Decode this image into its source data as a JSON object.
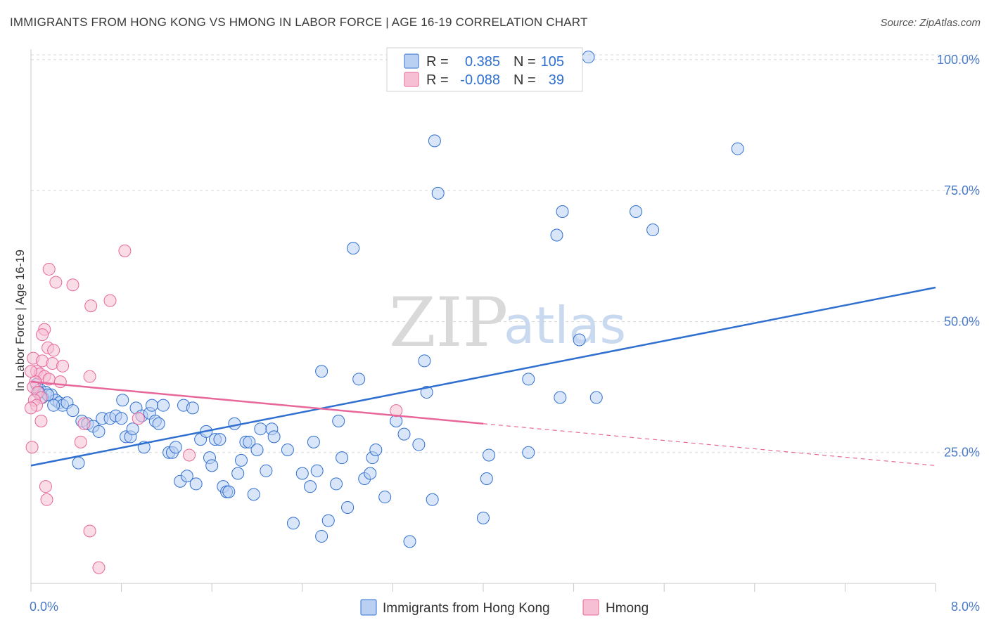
{
  "title": "IMMIGRANTS FROM HONG KONG VS HMONG IN LABOR FORCE | AGE 16-19 CORRELATION CHART",
  "source": "Source: ZipAtlas.com",
  "watermark": {
    "zip": "ZIP",
    "atlas": "atlas"
  },
  "colors": {
    "blue": "#2f6fd0",
    "blue_fill": "#b9d0f3",
    "pink": "#e8679a",
    "pink_fill": "#f6bfd3",
    "grid": "#d8d8d8",
    "tick_text": "#4a7bc8"
  },
  "legend": {
    "rows": [
      {
        "r_label": "R =",
        "r_value": "0.385",
        "n_label": "N =",
        "n_value": "105"
      },
      {
        "r_label": "R =",
        "r_value": "-0.088",
        "n_label": "N =",
        "n_value": "39"
      }
    ]
  },
  "chart_data": {
    "type": "scatter",
    "title": "IMMIGRANTS FROM HONG KONG VS HMONG IN LABOR FORCE | AGE 16-19 CORRELATION CHART",
    "xlabel": "",
    "ylabel": "In Labor Force | Age 16-19",
    "xlim": [
      0,
      8
    ],
    "ylim": [
      0,
      102
    ],
    "x_tick_labels": [
      "0.0%",
      "8.0%"
    ],
    "y_ticks": [
      25,
      50,
      75,
      100
    ],
    "y_tick_labels": [
      "25.0%",
      "50.0%",
      "75.0%",
      "100.0%"
    ],
    "grid": true,
    "legend_position": "top-center and bottom",
    "series": [
      {
        "name": "Immigrants from Hong Kong",
        "color": "#2f6fd0",
        "trend": {
          "x": [
            0,
            8
          ],
          "y": [
            22.5,
            56.5
          ]
        },
        "points": [
          [
            4.93,
            100.5
          ],
          [
            3.57,
            84.5
          ],
          [
            6.25,
            83.0
          ],
          [
            3.6,
            74.5
          ],
          [
            4.7,
            71.0
          ],
          [
            5.35,
            71.0
          ],
          [
            4.65,
            66.5
          ],
          [
            5.5,
            67.5
          ],
          [
            2.85,
            64.0
          ],
          [
            4.85,
            46.5
          ],
          [
            3.48,
            42.5
          ],
          [
            2.57,
            40.5
          ],
          [
            2.9,
            39.0
          ],
          [
            4.4,
            39.0
          ],
          [
            3.5,
            36.5
          ],
          [
            4.68,
            35.5
          ],
          [
            5.0,
            35.5
          ],
          [
            0.05,
            38.0
          ],
          [
            0.08,
            37.0
          ],
          [
            0.13,
            36.5
          ],
          [
            0.18,
            36.0
          ],
          [
            0.22,
            35.0
          ],
          [
            0.25,
            34.5
          ],
          [
            0.28,
            34.0
          ],
          [
            0.1,
            35.5
          ],
          [
            0.32,
            34.5
          ],
          [
            0.37,
            33.0
          ],
          [
            0.45,
            31.0
          ],
          [
            0.5,
            30.5
          ],
          [
            0.55,
            30.0
          ],
          [
            0.6,
            29.0
          ],
          [
            0.63,
            31.5
          ],
          [
            0.7,
            31.5
          ],
          [
            0.75,
            32.0
          ],
          [
            0.8,
            31.5
          ],
          [
            0.81,
            35.0
          ],
          [
            0.84,
            28.0
          ],
          [
            0.88,
            28.0
          ],
          [
            0.9,
            29.5
          ],
          [
            0.93,
            33.5
          ],
          [
            0.98,
            32.0
          ],
          [
            1.0,
            26.0
          ],
          [
            1.05,
            32.5
          ],
          [
            1.07,
            34.0
          ],
          [
            1.1,
            31.0
          ],
          [
            1.13,
            30.5
          ],
          [
            1.17,
            34.0
          ],
          [
            1.22,
            25.0
          ],
          [
            1.25,
            25.0
          ],
          [
            1.28,
            26.0
          ],
          [
            1.32,
            19.5
          ],
          [
            1.35,
            34.0
          ],
          [
            1.38,
            20.5
          ],
          [
            1.43,
            33.5
          ],
          [
            1.46,
            19.0
          ],
          [
            1.5,
            27.5
          ],
          [
            1.55,
            29.0
          ],
          [
            1.58,
            24.0
          ],
          [
            1.6,
            22.5
          ],
          [
            1.63,
            27.5
          ],
          [
            1.67,
            27.5
          ],
          [
            1.7,
            18.5
          ],
          [
            1.73,
            17.5
          ],
          [
            1.75,
            17.5
          ],
          [
            1.8,
            30.5
          ],
          [
            1.83,
            21.0
          ],
          [
            1.86,
            23.5
          ],
          [
            1.9,
            27.0
          ],
          [
            1.93,
            27.0
          ],
          [
            1.97,
            17.0
          ],
          [
            2.0,
            25.5
          ],
          [
            2.03,
            29.5
          ],
          [
            2.08,
            21.5
          ],
          [
            2.13,
            29.5
          ],
          [
            2.15,
            28.0
          ],
          [
            2.27,
            25.5
          ],
          [
            2.32,
            11.5
          ],
          [
            2.4,
            21.0
          ],
          [
            2.47,
            18.5
          ],
          [
            2.5,
            27.0
          ],
          [
            2.53,
            21.5
          ],
          [
            2.57,
            9.0
          ],
          [
            2.63,
            12.0
          ],
          [
            2.7,
            19.0
          ],
          [
            2.72,
            31.0
          ],
          [
            2.75,
            24.0
          ],
          [
            2.8,
            14.5
          ],
          [
            2.95,
            20.0
          ],
          [
            3.0,
            21.0
          ],
          [
            3.02,
            24.0
          ],
          [
            3.05,
            25.5
          ],
          [
            3.13,
            16.5
          ],
          [
            3.23,
            31.0
          ],
          [
            3.3,
            28.5
          ],
          [
            3.35,
            8.0
          ],
          [
            3.43,
            26.5
          ],
          [
            3.55,
            16.0
          ],
          [
            4.0,
            12.5
          ],
          [
            4.03,
            20.0
          ],
          [
            4.05,
            24.5
          ],
          [
            4.4,
            25.0
          ],
          [
            0.42,
            23.0
          ],
          [
            0.07,
            36.5
          ],
          [
            0.15,
            36.0
          ],
          [
            0.2,
            34.0
          ]
        ]
      },
      {
        "name": "Hmong",
        "color": "#e8679a",
        "trend": {
          "x": [
            0,
            4.0
          ],
          "y": [
            38.5,
            30.5
          ]
        },
        "trend_dashed": {
          "x": [
            4.0,
            8
          ],
          "y": [
            30.5,
            22.5
          ]
        },
        "points": [
          [
            0.83,
            63.5
          ],
          [
            0.16,
            60.0
          ],
          [
            0.22,
            57.5
          ],
          [
            0.37,
            57.0
          ],
          [
            0.7,
            54.0
          ],
          [
            0.53,
            53.0
          ],
          [
            0.12,
            48.5
          ],
          [
            0.1,
            47.5
          ],
          [
            0.02,
            43.0
          ],
          [
            0.1,
            42.5
          ],
          [
            0.19,
            42.0
          ],
          [
            0.28,
            41.5
          ],
          [
            0.05,
            40.5
          ],
          [
            0.08,
            40.0
          ],
          [
            0.12,
            39.5
          ],
          [
            0.16,
            39.0
          ],
          [
            0.04,
            38.5
          ],
          [
            0.02,
            37.5
          ],
          [
            0.06,
            36.5
          ],
          [
            0.09,
            35.5
          ],
          [
            0.03,
            35.0
          ],
          [
            0.26,
            38.5
          ],
          [
            0.52,
            39.5
          ],
          [
            0.05,
            34.0
          ],
          [
            0.09,
            31.0
          ],
          [
            0.47,
            30.5
          ],
          [
            0.95,
            31.5
          ],
          [
            0.01,
            26.0
          ],
          [
            0.44,
            27.0
          ],
          [
            1.4,
            24.5
          ],
          [
            0.13,
            18.5
          ],
          [
            0.14,
            16.0
          ],
          [
            0.52,
            10.0
          ],
          [
            0.6,
            3.0
          ],
          [
            3.23,
            33.0
          ],
          [
            0.0,
            40.5
          ],
          [
            0.15,
            45.0
          ],
          [
            0.2,
            44.5
          ],
          [
            0.0,
            33.5
          ]
        ]
      }
    ]
  }
}
